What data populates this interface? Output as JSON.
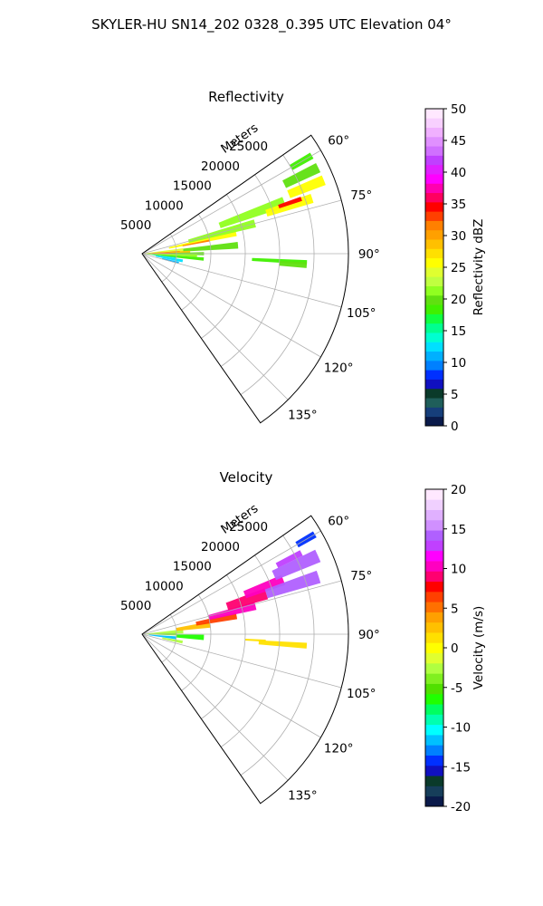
{
  "suptitle": "SKYLER-HU  SN14_202  0328_0.395 UTC Elevation 04°",
  "chart_data": [
    {
      "type": "heatmap",
      "projection": "polar-sector",
      "title": "Reflectivity",
      "radial_label": "Meters",
      "r_ticks": [
        5000,
        10000,
        15000,
        20000,
        25000
      ],
      "r_max": 30000,
      "theta_ticks": [
        "60°",
        "75°",
        "90°",
        "105°",
        "120°",
        "135°"
      ],
      "theta_tick_values": [
        60,
        75,
        90,
        105,
        120,
        135
      ],
      "theta_range": [
        55,
        145
      ],
      "grid": true,
      "colorbar": {
        "label": "Reflectivity dBZ",
        "min": 0,
        "max": 50,
        "ticks": [
          "0",
          "5",
          "10",
          "15",
          "20",
          "25",
          "30",
          "35",
          "40",
          "45",
          "50"
        ],
        "colors": [
          "#0a1a4a",
          "#163e7a",
          "#1f5e5a",
          "#0a3a2a",
          "#1010c0",
          "#0030ff",
          "#0080ff",
          "#00b0ff",
          "#00e0ff",
          "#00ffd0",
          "#00ff90",
          "#10ff40",
          "#40f000",
          "#60e010",
          "#90ff20",
          "#c0ff40",
          "#e0ff30",
          "#ffff00",
          "#ffe000",
          "#ffc000",
          "#ffa000",
          "#ff8000",
          "#ff4000",
          "#ff0000",
          "#ff0060",
          "#ff00b0",
          "#ff00ff",
          "#e020ff",
          "#c040ff",
          "#d070ff",
          "#e090ff",
          "#f0b0ff",
          "#f8d0ff",
          "#ffe8ff"
        ]
      },
      "cells": [
        {
          "theta": 85,
          "r0": 0,
          "r1": 6000,
          "w": 5,
          "value": 24
        },
        {
          "theta": 85,
          "r0": 6000,
          "r1": 14000,
          "w": 4,
          "value": 20
        },
        {
          "theta": 87,
          "r0": 1500,
          "r1": 5500,
          "w": 2,
          "value": 33
        },
        {
          "theta": 88,
          "r0": 0,
          "r1": 7000,
          "w": 3,
          "value": 28
        },
        {
          "theta": 89,
          "r0": 1000,
          "r1": 5000,
          "w": 1.5,
          "value": 37
        },
        {
          "theta": 90,
          "r0": 0,
          "r1": 4000,
          "w": 2,
          "value": 30
        },
        {
          "theta": 90,
          "r0": 4000,
          "r1": 9000,
          "w": 3,
          "value": 20
        },
        {
          "theta": 92,
          "r0": 0,
          "r1": 8000,
          "w": 3,
          "value": 22
        },
        {
          "theta": 95,
          "r0": 0,
          "r1": 9000,
          "w": 3,
          "value": 19
        },
        {
          "theta": 97,
          "r0": 1500,
          "r1": 5000,
          "w": 2,
          "value": 12
        },
        {
          "theta": 100,
          "r0": 2000,
          "r1": 6000,
          "w": 4,
          "value": 13
        },
        {
          "theta": 104,
          "r0": 3000,
          "r1": 5500,
          "w": 3,
          "value": 11
        },
        {
          "theta": 78,
          "r0": 4000,
          "r1": 14000,
          "w": 3,
          "value": 26
        },
        {
          "theta": 79,
          "r0": 6000,
          "r1": 10000,
          "w": 1.5,
          "value": 31
        },
        {
          "theta": 75,
          "r0": 7000,
          "r1": 17000,
          "w": 4,
          "value": 21
        },
        {
          "theta": 70,
          "r0": 12000,
          "r1": 22000,
          "w": 4,
          "value": 22
        },
        {
          "theta": 72,
          "r0": 19000,
          "r1": 26000,
          "w": 3,
          "value": 26
        },
        {
          "theta": 71,
          "r0": 21000,
          "r1": 24500,
          "w": 1.5,
          "value": 35
        },
        {
          "theta": 68,
          "r0": 23000,
          "r1": 28500,
          "w": 3,
          "value": 25
        },
        {
          "theta": 64,
          "r0": 23000,
          "r1": 28500,
          "w": 3,
          "value": 20
        },
        {
          "theta": 60,
          "r0": 25000,
          "r1": 28500,
          "w": 2,
          "value": 19
        },
        {
          "theta": 93,
          "r0": 16000,
          "r1": 24000,
          "w": 1.5,
          "value": 18
        },
        {
          "theta": 94,
          "r0": 20000,
          "r1": 24000,
          "w": 2,
          "value": 20
        }
      ]
    },
    {
      "type": "heatmap",
      "projection": "polar-sector",
      "title": "Velocity",
      "radial_label": "Meters",
      "r_ticks": [
        5000,
        10000,
        15000,
        20000,
        25000
      ],
      "r_max": 30000,
      "theta_ticks": [
        "60°",
        "75°",
        "90°",
        "105°",
        "120°",
        "135°"
      ],
      "theta_tick_values": [
        60,
        75,
        90,
        105,
        120,
        135
      ],
      "theta_range": [
        55,
        145
      ],
      "grid": true,
      "colorbar": {
        "label": "Velocity (m/s)",
        "min": -20,
        "max": 20,
        "ticks": [
          "-20",
          "-15",
          "-10",
          "-5",
          "0",
          "5",
          "10",
          "15",
          "20"
        ],
        "colors": [
          "#0a1a4a",
          "#163e5a",
          "#0a3a2a",
          "#1010c0",
          "#0030ff",
          "#0080ff",
          "#00c0ff",
          "#00ffff",
          "#00ffb0",
          "#00ff60",
          "#20ff00",
          "#50e000",
          "#80f020",
          "#b0ff40",
          "#e0ff30",
          "#ffff00",
          "#ffe000",
          "#ffc000",
          "#ffa000",
          "#ff7000",
          "#ff4000",
          "#ff0000",
          "#ff0070",
          "#ff00c0",
          "#ff00ff",
          "#c040ff",
          "#b060ff",
          "#d090ff",
          "#e0b0ff",
          "#f0d0ff",
          "#ffe8ff"
        ]
      },
      "cells": [
        {
          "theta": 86,
          "r0": 0,
          "r1": 6000,
          "w": 6,
          "value": -2
        },
        {
          "theta": 90,
          "r0": 0,
          "r1": 5000,
          "w": 4,
          "value": -4
        },
        {
          "theta": 96,
          "r0": 1000,
          "r1": 5000,
          "w": 5,
          "value": -11
        },
        {
          "theta": 93,
          "r0": 5000,
          "r1": 9000,
          "w": 5,
          "value": -6
        },
        {
          "theta": 101,
          "r0": 3000,
          "r1": 6000,
          "w": 4,
          "value": -3
        },
        {
          "theta": 82,
          "r0": 5000,
          "r1": 10000,
          "w": 5,
          "value": 3
        },
        {
          "theta": 79,
          "r0": 8000,
          "r1": 14000,
          "w": 4,
          "value": 6
        },
        {
          "theta": 76,
          "r0": 10000,
          "r1": 17000,
          "w": 4,
          "value": 10
        },
        {
          "theta": 72,
          "r0": 13000,
          "r1": 19000,
          "w": 5,
          "value": 9
        },
        {
          "theta": 69,
          "r0": 16000,
          "r1": 22000,
          "w": 4,
          "value": 10
        },
        {
          "theta": 72,
          "r0": 19000,
          "r1": 27000,
          "w": 4,
          "value": 14
        },
        {
          "theta": 66,
          "r0": 21000,
          "r1": 28000,
          "w": 4,
          "value": 14
        },
        {
          "theta": 63,
          "r0": 22000,
          "r1": 26000,
          "w": 2,
          "value": 13
        },
        {
          "theta": 60,
          "r0": 26000,
          "r1": 29000,
          "w": 2,
          "value": -14
        },
        {
          "theta": 94,
          "r0": 17000,
          "r1": 24000,
          "w": 2,
          "value": 1
        },
        {
          "theta": 93,
          "r0": 15000,
          "r1": 18000,
          "w": 1,
          "value": 1
        }
      ]
    }
  ]
}
